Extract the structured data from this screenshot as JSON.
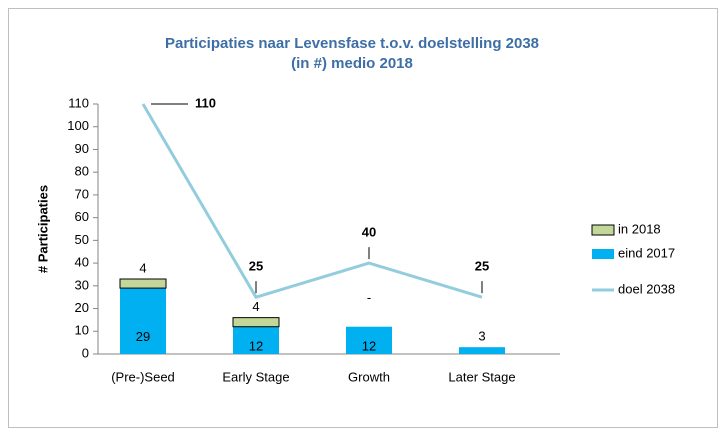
{
  "chart_data": {
    "type": "bar",
    "title": [
      "Participaties naar Levensfase t.o.v. doelstelling 2038",
      "(in #) medio 2018"
    ],
    "y_label": "# Participaties",
    "categories": [
      "(Pre-)Seed",
      "Early Stage",
      "Growth",
      "Later Stage"
    ],
    "stacked": true,
    "series": [
      {
        "name": "eind 2017",
        "color": "#00b0f0",
        "values": [
          29,
          12,
          12,
          3
        ]
      },
      {
        "name": "in 2018",
        "color": "#c4d79b",
        "values": [
          4,
          4,
          0,
          null
        ],
        "value_labels": [
          "4",
          "4",
          "-",
          null
        ]
      },
      {
        "name": "doel 2038",
        "type": "line",
        "color": "#93cddd",
        "values": [
          110,
          25,
          40,
          25
        ]
      }
    ],
    "ylim": [
      0,
      110
    ],
    "yticks": [
      0,
      10,
      20,
      30,
      40,
      50,
      60,
      70,
      80,
      90,
      100,
      110
    ],
    "legend": "right"
  }
}
